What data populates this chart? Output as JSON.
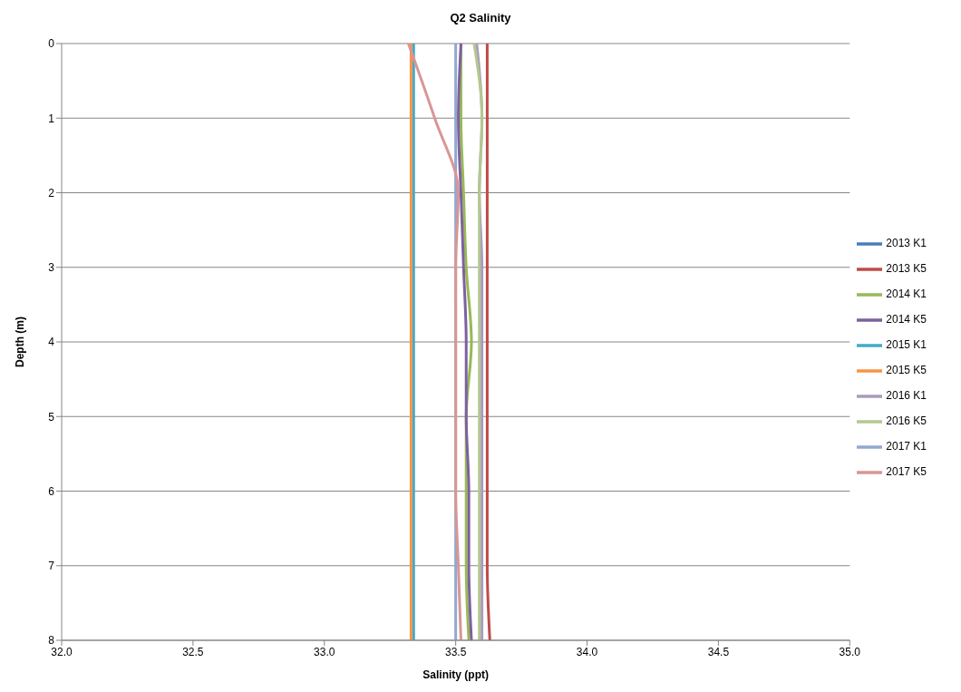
{
  "chart_data": {
    "type": "line",
    "title": "Q2 Salinity",
    "xlabel": "Salinity (ppt)",
    "ylabel": "Depth (m)",
    "orientation": "horizontal",
    "x": [
      0,
      1,
      2,
      3,
      4,
      5,
      6,
      7,
      8
    ],
    "xlim": [
      32,
      35
    ],
    "xticks": [
      {
        "value": 32,
        "label": "32.0"
      },
      {
        "value": 32.5,
        "label": "32.5"
      },
      {
        "value": 33,
        "label": "33.0"
      },
      {
        "value": 33.5,
        "label": "33.5"
      },
      {
        "value": 34,
        "label": "34.0"
      },
      {
        "value": 34.5,
        "label": "34.5"
      },
      {
        "value": 35,
        "label": "35.0"
      }
    ],
    "ylim": [
      8,
      0
    ],
    "yticks": [
      0,
      1,
      2,
      3,
      4,
      5,
      6,
      7,
      8
    ],
    "grid": "y",
    "legend": "right",
    "marker": "none",
    "line_style": "solid",
    "series": [
      {
        "name": "2013 K1",
        "color": "#4a7ebb",
        "values": [
          null,
          null,
          null,
          null,
          null,
          null,
          null,
          null,
          null
        ]
      },
      {
        "name": "2013 K5",
        "color": "#be4b48",
        "values": [
          33.62,
          33.62,
          33.62,
          33.62,
          33.62,
          33.62,
          33.62,
          33.62,
          33.63
        ]
      },
      {
        "name": "2014 K1",
        "color": "#98b954",
        "values": [
          33.52,
          33.52,
          33.53,
          33.54,
          33.56,
          33.54,
          33.54,
          33.54,
          33.55
        ]
      },
      {
        "name": "2014 K5",
        "color": "#7d60a0",
        "values": [
          33.52,
          33.51,
          33.52,
          33.53,
          33.54,
          33.54,
          33.55,
          33.55,
          33.56
        ]
      },
      {
        "name": "2015 K1",
        "color": "#46aac5",
        "values": [
          33.34,
          33.34,
          33.34,
          33.34,
          33.34,
          33.34,
          33.34,
          33.34,
          33.34
        ]
      },
      {
        "name": "2015 K5",
        "color": "#f69546",
        "values": [
          33.33,
          33.33,
          33.33,
          33.33,
          33.33,
          33.33,
          33.33,
          33.33,
          33.33
        ]
      },
      {
        "name": "2016 K1",
        "color": "#a99bbd",
        "values": [
          33.58,
          33.6,
          33.59,
          33.6,
          33.6,
          33.6,
          33.6,
          33.6,
          33.6
        ]
      },
      {
        "name": "2016 K5",
        "color": "#b3c88f",
        "values": [
          33.57,
          33.6,
          33.59,
          33.59,
          33.59,
          33.59,
          33.59,
          33.59,
          33.59
        ]
      },
      {
        "name": "2017 K1",
        "color": "#91a8d0",
        "values": [
          33.5,
          33.5,
          33.5,
          33.5,
          33.5,
          33.5,
          33.5,
          33.5,
          33.5
        ]
      },
      {
        "name": "2017 K5",
        "color": "#d99694",
        "values": [
          33.32,
          33.42,
          33.51,
          33.5,
          33.5,
          33.5,
          33.5,
          33.51,
          33.52
        ]
      }
    ]
  }
}
